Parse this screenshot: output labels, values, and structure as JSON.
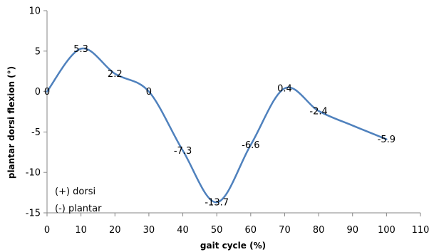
{
  "chart_data": {
    "type": "line",
    "title": "",
    "xlabel": "gait cycle (%)",
    "ylabel": "plantar dorsi flexion (°)",
    "xlim": [
      0,
      110
    ],
    "ylim": [
      -15,
      10
    ],
    "xticks": [
      0,
      10,
      20,
      30,
      40,
      50,
      60,
      70,
      80,
      90,
      100,
      110
    ],
    "yticks": [
      -15,
      -10,
      -5,
      0,
      5,
      10
    ],
    "grid": false,
    "legend": "none",
    "line_color": "#4f81bd",
    "series": [
      {
        "x": [
          0,
          10,
          20,
          30,
          40,
          50,
          60,
          70,
          80,
          90,
          100
        ],
        "y": [
          0,
          5.3,
          2.2,
          0,
          -7.3,
          -13.7,
          -6.6,
          0.4,
          -2.4,
          -4.2,
          -5.9
        ]
      }
    ],
    "data_labels": [
      {
        "x": 0,
        "y": 0,
        "text": "0"
      },
      {
        "x": 10,
        "y": 5.3,
        "text": "5.3"
      },
      {
        "x": 20,
        "y": 2.2,
        "text": "2.2"
      },
      {
        "x": 30,
        "y": 0,
        "text": "0"
      },
      {
        "x": 40,
        "y": -7.3,
        "text": "-7.3"
      },
      {
        "x": 50,
        "y": -13.7,
        "text": "-13.7"
      },
      {
        "x": 60,
        "y": -6.6,
        "text": "-6.6"
      },
      {
        "x": 70,
        "y": 0.4,
        "text": "0.4"
      },
      {
        "x": 80,
        "y": -2.4,
        "text": "-2.4"
      },
      {
        "x": 100,
        "y": -5.9,
        "text": "-5.9"
      }
    ],
    "annotations": [
      "(+) dorsi",
      "(-) plantar"
    ]
  }
}
